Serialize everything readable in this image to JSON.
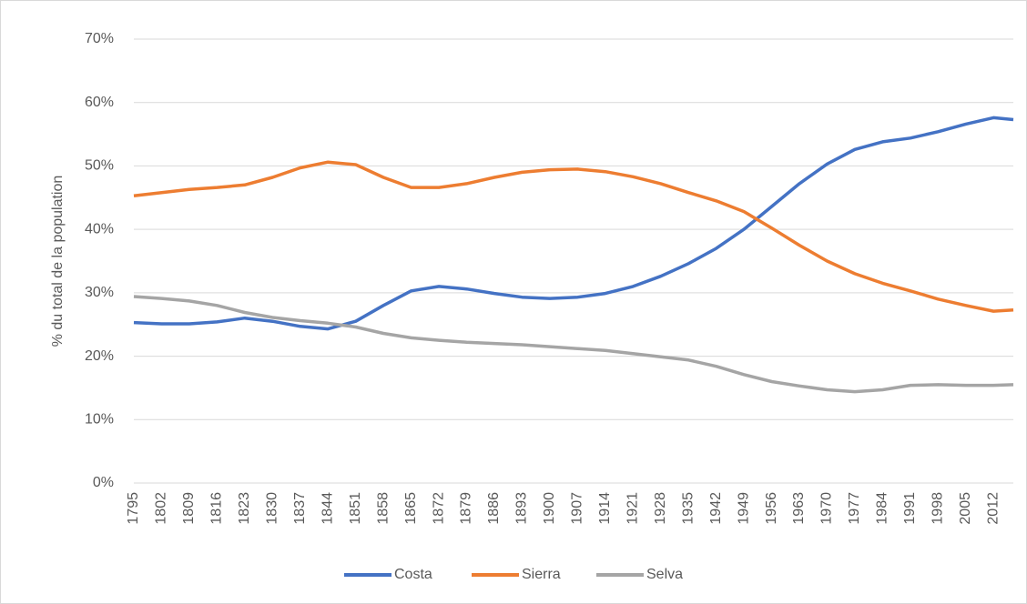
{
  "chart_data": {
    "type": "line",
    "y_label": "% du total de la population",
    "x": [
      1795,
      1802,
      1809,
      1816,
      1823,
      1830,
      1837,
      1844,
      1851,
      1858,
      1865,
      1872,
      1879,
      1886,
      1893,
      1900,
      1907,
      1914,
      1921,
      1928,
      1935,
      1942,
      1949,
      1956,
      1963,
      1970,
      1977,
      1984,
      1991,
      1998,
      2005,
      2012,
      2017
    ],
    "series": [
      {
        "name": "Costa",
        "color": "#4472c4",
        "values": [
          25.3,
          25.1,
          25.1,
          25.4,
          26.0,
          25.5,
          24.7,
          24.3,
          25.5,
          28.0,
          30.3,
          31.0,
          30.6,
          29.9,
          29.3,
          29.1,
          29.3,
          29.9,
          31.0,
          32.6,
          34.6,
          37.0,
          40.0,
          43.6,
          47.2,
          50.3,
          52.6,
          53.8,
          54.4,
          55.4,
          56.6,
          57.6,
          57.3
        ]
      },
      {
        "name": "Sierra",
        "color": "#ed7d31",
        "values": [
          45.3,
          45.8,
          46.3,
          46.6,
          47.0,
          48.2,
          49.7,
          50.6,
          50.2,
          48.2,
          46.6,
          46.6,
          47.2,
          48.2,
          49.0,
          49.4,
          49.5,
          49.1,
          48.3,
          47.2,
          45.8,
          44.5,
          42.8,
          40.2,
          37.5,
          35.0,
          33.0,
          31.5,
          30.3,
          29.0,
          28.0,
          27.1,
          27.3
        ]
      },
      {
        "name": "Selva",
        "color": "#a5a5a5",
        "values": [
          29.4,
          29.1,
          28.7,
          28.0,
          26.9,
          26.1,
          25.6,
          25.2,
          24.6,
          23.6,
          22.9,
          22.5,
          22.2,
          22.0,
          21.8,
          21.5,
          21.2,
          20.9,
          20.4,
          19.9,
          19.4,
          18.4,
          17.1,
          16.0,
          15.3,
          14.7,
          14.4,
          14.7,
          15.4,
          15.5,
          15.4,
          15.4,
          15.5
        ]
      }
    ],
    "xlim": [
      1795,
      2017
    ],
    "xticks": [
      1795,
      1802,
      1809,
      1816,
      1823,
      1830,
      1837,
      1844,
      1851,
      1858,
      1865,
      1872,
      1879,
      1886,
      1893,
      1900,
      1907,
      1914,
      1921,
      1928,
      1935,
      1942,
      1949,
      1956,
      1963,
      1970,
      1977,
      1984,
      1991,
      1998,
      2005,
      2012
    ],
    "ylim": [
      0,
      70
    ],
    "yticks": [
      {
        "value": 0,
        "label": "0%"
      },
      {
        "value": 10,
        "label": "10%"
      },
      {
        "value": 20,
        "label": "20%"
      },
      {
        "value": 30,
        "label": "30%"
      },
      {
        "value": 40,
        "label": "40%"
      },
      {
        "value": 50,
        "label": "50%"
      },
      {
        "value": 60,
        "label": "60%"
      },
      {
        "value": 70,
        "label": "70%"
      }
    ],
    "grid": true,
    "legend": "bottom"
  }
}
